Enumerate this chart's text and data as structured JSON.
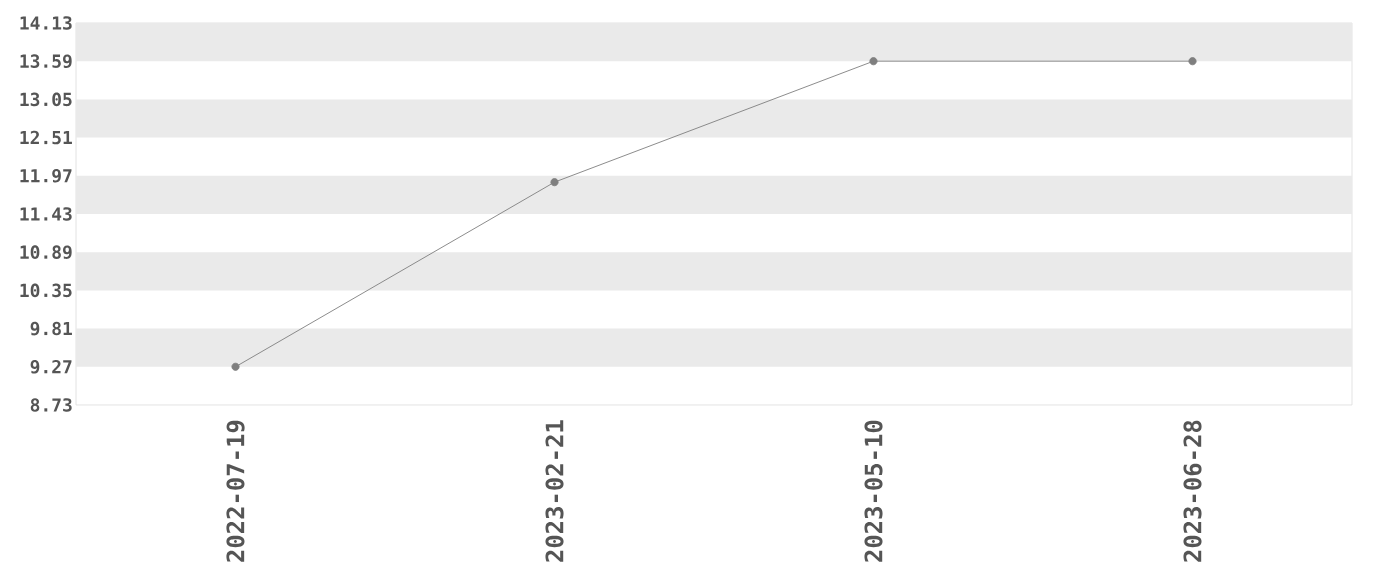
{
  "chart_data": {
    "type": "line",
    "categories": [
      "2022-07-19",
      "2023-02-21",
      "2023-05-10",
      "2023-06-28"
    ],
    "values": [
      9.27,
      11.88,
      13.59,
      13.59
    ],
    "color": "#7f7f7f",
    "ylim": [
      8.73,
      14.13
    ],
    "yticks": [
      8.73,
      9.27,
      9.81,
      10.35,
      10.89,
      11.43,
      11.97,
      12.51,
      13.05,
      13.59,
      14.13
    ],
    "bands": [
      {
        "axis": "y",
        "from": 9.27,
        "to": 9.81,
        "color": "#eaeaea"
      },
      {
        "axis": "y",
        "from": 10.35,
        "to": 10.89,
        "color": "#eaeaea"
      },
      {
        "axis": "y",
        "from": 11.43,
        "to": 11.97,
        "color": "#eaeaea"
      },
      {
        "axis": "y",
        "from": 12.51,
        "to": 13.05,
        "color": "#eaeaea"
      },
      {
        "axis": "y",
        "from": 13.59,
        "to": 14.13,
        "color": "#eaeaea"
      }
    ],
    "marker": "circle"
  }
}
